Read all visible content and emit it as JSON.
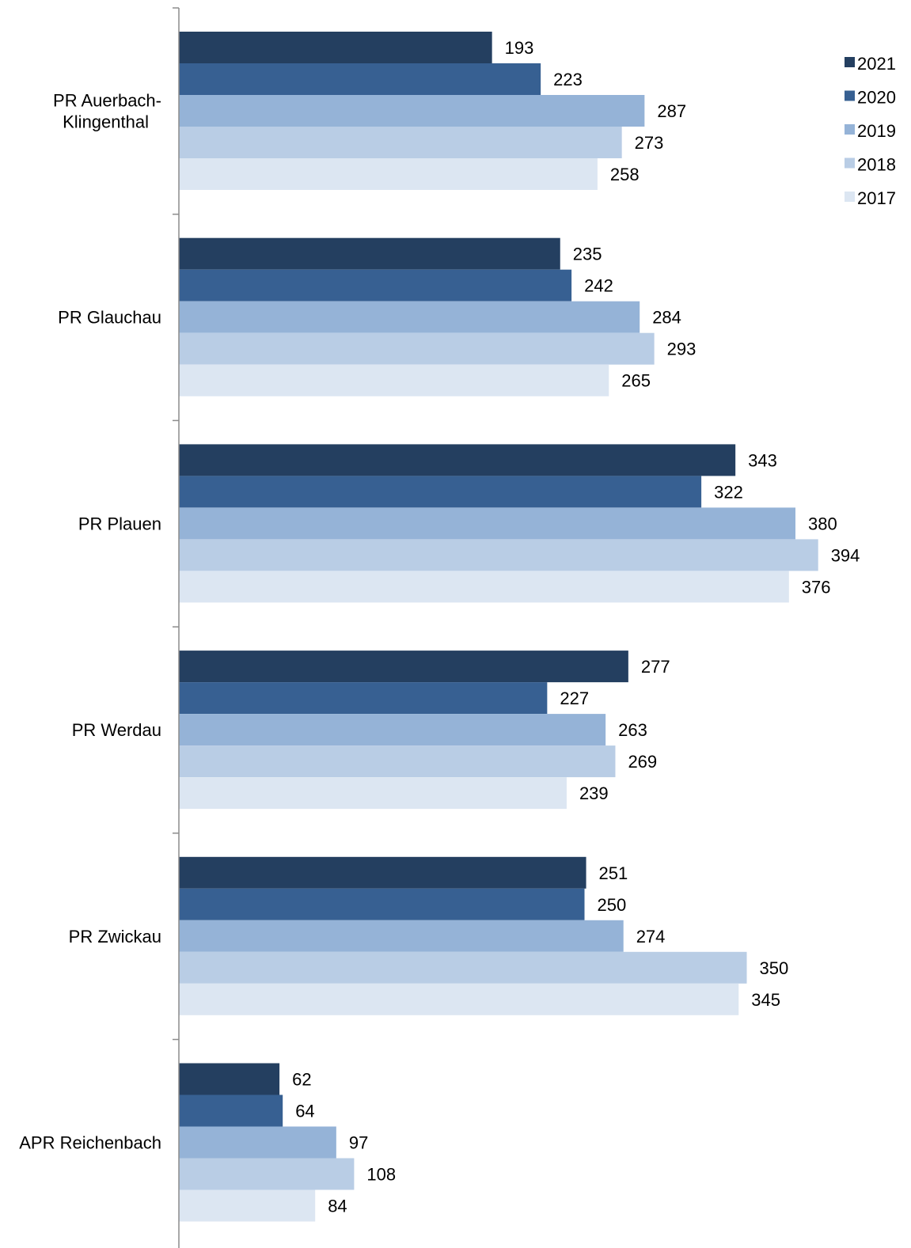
{
  "chart_data": {
    "type": "bar",
    "orientation": "horizontal",
    "categories": [
      [
        "PR Auerbach-",
        "Klingenthal"
      ],
      [
        "PR Glauchau"
      ],
      [
        "PR Plauen"
      ],
      [
        "PR Werdau"
      ],
      [
        "PR Zwickau"
      ],
      [
        "APR Reichenbach"
      ]
    ],
    "series": [
      {
        "name": "2021",
        "color": "#243f60",
        "values": [
          193,
          235,
          343,
          277,
          251,
          62
        ]
      },
      {
        "name": "2020",
        "color": "#376092",
        "values": [
          223,
          242,
          322,
          227,
          250,
          64
        ]
      },
      {
        "name": "2019",
        "color": "#95b3d7",
        "values": [
          287,
          284,
          380,
          263,
          274,
          97
        ]
      },
      {
        "name": "2018",
        "color": "#b9cde5",
        "values": [
          273,
          293,
          394,
          269,
          350,
          108
        ]
      },
      {
        "name": "2017",
        "color": "#dce6f2",
        "values": [
          258,
          265,
          376,
          239,
          345,
          84
        ]
      }
    ],
    "xlim": [
      0,
      400
    ],
    "grid": false,
    "legend_position": "top-right",
    "data_labels": true
  }
}
